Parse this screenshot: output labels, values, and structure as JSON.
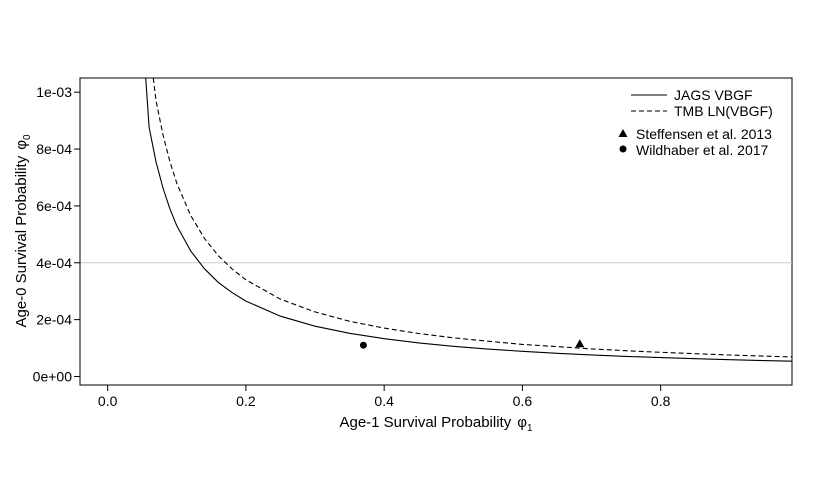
{
  "chart_data": {
    "type": "line",
    "xlabel": "Age-1 Survival Probability",
    "xlabel_symbol": "φ",
    "xlabel_sub": "1",
    "ylabel": "Age-0 Survival Probability",
    "ylabel_symbol": "φ",
    "ylabel_sub": "0",
    "xlim": [
      -0.04,
      0.99
    ],
    "ylim": [
      -3e-05,
      0.00105
    ],
    "xticks": [
      0.0,
      0.2,
      0.4,
      0.6,
      0.8
    ],
    "xtick_labels": [
      "0.0",
      "0.2",
      "0.4",
      "0.6",
      "0.8"
    ],
    "yticks": [
      0.0,
      0.0002,
      0.0004,
      0.0006,
      0.0008,
      0.001
    ],
    "ytick_labels": [
      "0e+00",
      "2e-04",
      "4e-04",
      "6e-04",
      "8e-04",
      "1e-03"
    ],
    "reference_line": {
      "y": 0.0004,
      "color": "#cccccc"
    },
    "series": [
      {
        "name": "JAGS VBGF",
        "style": "solid",
        "x": [
          0.055,
          0.06,
          0.07,
          0.08,
          0.09,
          0.1,
          0.12,
          0.14,
          0.16,
          0.18,
          0.2,
          0.25,
          0.3,
          0.35,
          0.4,
          0.45,
          0.5,
          0.55,
          0.6,
          0.65,
          0.7,
          0.75,
          0.8,
          0.85,
          0.9,
          0.95,
          0.99
        ],
        "y": [
          0.00105,
          0.000877,
          0.000755,
          0.000663,
          0.00059,
          0.00053,
          0.000442,
          0.000379,
          0.000331,
          0.000295,
          0.000265,
          0.000212,
          0.000177,
          0.000152,
          0.000133,
          0.000118,
          0.000106,
          9.64e-05,
          8.84e-05,
          8.16e-05,
          7.58e-05,
          7.07e-05,
          6.63e-05,
          6.24e-05,
          5.89e-05,
          5.58e-05,
          5.36e-05
        ]
      },
      {
        "name": "TMB LN(VBGF)",
        "style": "dashed",
        "x": [
          0.066,
          0.07,
          0.08,
          0.09,
          0.1,
          0.12,
          0.14,
          0.16,
          0.18,
          0.2,
          0.25,
          0.3,
          0.35,
          0.4,
          0.45,
          0.5,
          0.55,
          0.6,
          0.65,
          0.7,
          0.75,
          0.8,
          0.85,
          0.9,
          0.95,
          0.99
        ],
        "y": [
          0.00105,
          0.000971,
          0.00085,
          0.000756,
          0.00068,
          0.000567,
          0.000486,
          0.000425,
          0.000378,
          0.00034,
          0.000272,
          0.000227,
          0.000194,
          0.00017,
          0.000151,
          0.000136,
          0.000124,
          0.000113,
          0.000105,
          9.71e-05,
          9.07e-05,
          8.5e-05,
          8e-05,
          7.56e-05,
          7.16e-05,
          6.87e-05
        ]
      }
    ],
    "points": [
      {
        "name": "Steffensen et al. 2013",
        "marker": "triangle",
        "x": 0.683,
        "y": 0.000115
      },
      {
        "name": "Wildhaber et al. 2017",
        "marker": "circle",
        "x": 0.37,
        "y": 0.00011
      }
    ],
    "legend_position": "top-right"
  }
}
